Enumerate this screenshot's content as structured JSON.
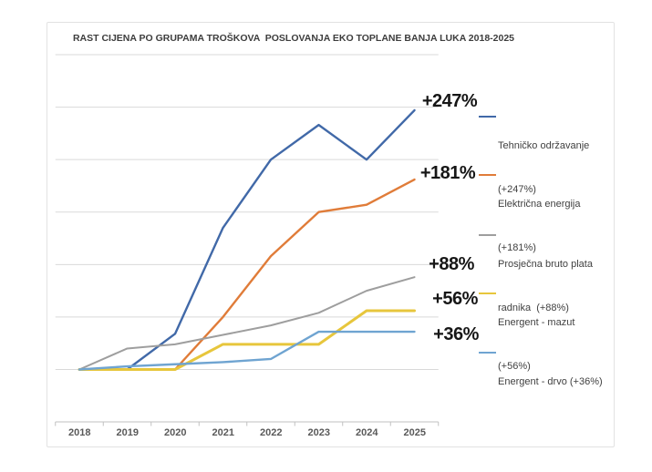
{
  "title": "RAST CIJENA PO GRUPAMA TROŠKOVA  POSLOVANJA EKO TOPLANE BANJA LUKA 2018-2025",
  "chart_data": {
    "type": "line",
    "title": "RAST CIJENA PO GRUPAMA TROŠKOVA  POSLOVANJA EKO TOPLANE BANJA LUKA 2018-2025",
    "xlabel": "",
    "ylabel": "",
    "categories": [
      "2018",
      "2019",
      "2020",
      "2021",
      "2022",
      "2023",
      "2024",
      "2025"
    ],
    "ylim": [
      -50,
      300
    ],
    "grid_step_percent": 50,
    "grid": "horizontal",
    "y_axis_labels_visible": false,
    "legend_position": "right",
    "series": [
      {
        "name": "Tehničko održavanje (+247%)",
        "legend_lines": [
          "Tehničko održavanje",
          "(+247%)"
        ],
        "end_label": "+247%",
        "color": "#4169A8",
        "values": [
          0,
          0,
          34,
          135,
          200,
          233,
          200,
          247
        ]
      },
      {
        "name": "Električna energija (+181%)",
        "legend_lines": [
          "Električna energija",
          "(+181%)"
        ],
        "end_label": "+181%",
        "color": "#E07C39",
        "values": [
          0,
          0,
          0,
          50,
          108,
          150,
          157,
          181
        ]
      },
      {
        "name": "Prosječna bruto plata radnika (+88%)",
        "legend_lines": [
          "Prosječna bruto plata",
          "radnika  (+88%)"
        ],
        "end_label": "+88%",
        "color": "#9E9E9E",
        "values": [
          0,
          20,
          24,
          33,
          42,
          54,
          75,
          88
        ]
      },
      {
        "name": "Energent - mazut (+56%)",
        "legend_lines": [
          "Energent - mazut",
          "(+56%)"
        ],
        "end_label": "+56%",
        "color": "#E7C63C",
        "values": [
          0,
          0,
          0,
          24,
          24,
          24,
          56,
          56
        ]
      },
      {
        "name": "Energent - drvo (+36%)",
        "legend_lines": [
          "Energent - drvo (+36%)"
        ],
        "end_label": "+36%",
        "color": "#6FA4D1",
        "values": [
          0,
          3,
          5,
          7,
          10,
          36,
          36,
          36
        ]
      }
    ],
    "colors": {
      "gridline": "#d9d9d9",
      "axis": "#c0c0c0",
      "title_text": "#3d3d3d",
      "end_label_text": "#161616"
    }
  }
}
